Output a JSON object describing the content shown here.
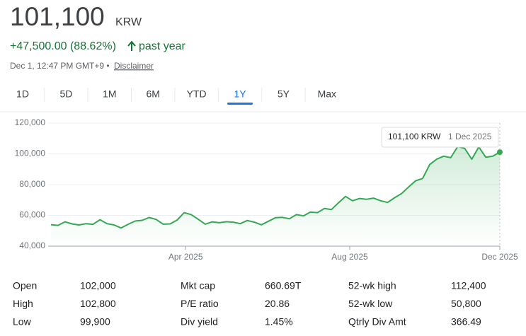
{
  "header": {
    "price": "101,100",
    "currency": "KRW",
    "change": "+47,500.00 (88.62%)",
    "period": "past year",
    "timestamp": "Dec 1, 12:47 PM GMT+9 •",
    "disclaimer": "Disclaimer"
  },
  "ranges": [
    "1D",
    "5D",
    "1M",
    "6M",
    "YTD",
    "1Y",
    "5Y",
    "Max"
  ],
  "active_range": 5,
  "chart_data": {
    "type": "line",
    "color": "#34a853",
    "grid": true,
    "x": [
      0,
      1,
      2,
      3,
      4,
      5,
      6,
      7,
      8,
      9,
      10,
      11,
      12,
      13,
      14,
      15,
      16,
      17,
      18,
      19,
      20,
      21,
      22,
      23,
      24,
      25,
      26,
      27,
      28,
      29,
      30,
      31,
      32,
      33,
      34,
      35,
      36,
      37,
      38,
      39,
      40,
      41,
      42,
      43,
      44,
      45,
      46,
      47,
      48,
      49,
      50,
      51,
      52,
      53,
      54,
      55,
      56,
      57,
      58,
      59,
      60,
      61,
      62,
      63,
      64
    ],
    "values": [
      54000,
      53500,
      55800,
      54500,
      53800,
      54600,
      54200,
      57200,
      54600,
      53800,
      51800,
      54200,
      56300,
      56800,
      58600,
      57400,
      54300,
      54500,
      57000,
      61800,
      60500,
      57500,
      54300,
      55800,
      55200,
      55900,
      55600,
      54600,
      56700,
      55600,
      53900,
      56200,
      58500,
      58700,
      57800,
      60500,
      59700,
      62200,
      61800,
      64500,
      63800,
      68200,
      72300,
      69500,
      71000,
      70500,
      71200,
      69500,
      68400,
      71500,
      74200,
      78500,
      82500,
      84000,
      93000,
      96500,
      98500,
      97500,
      104800,
      103500,
      96500,
      104500,
      97800,
      98500,
      101100
    ],
    "xlim": [
      -0.4,
      64
    ],
    "xticks": [
      {
        "value": 19.2,
        "label": "Apr 2025"
      },
      {
        "value": 42.6,
        "label": "Aug 2025"
      },
      {
        "value": 64,
        "label": "Dec 2025"
      }
    ],
    "ylim": [
      40000,
      120000
    ],
    "yticks": [
      {
        "value": 40000,
        "label": "40,000"
      },
      {
        "value": 60000,
        "label": "60,000"
      },
      {
        "value": 80000,
        "label": "80,000"
      },
      {
        "value": 100000,
        "label": "100,000"
      },
      {
        "value": 120000,
        "label": "120,000"
      }
    ],
    "tooltip": {
      "value": "101,100 KRW",
      "date": "1 Dec 2025"
    }
  },
  "stats": [
    [
      [
        "Open",
        "102,000"
      ],
      [
        "Mkt cap",
        "660.69T"
      ],
      [
        "52-wk high",
        "112,400"
      ]
    ],
    [
      [
        "High",
        "102,800"
      ],
      [
        "P/E ratio",
        "20.86"
      ],
      [
        "52-wk low",
        "50,800"
      ]
    ],
    [
      [
        "Low",
        "99,900"
      ],
      [
        "Div yield",
        "1.45%"
      ],
      [
        "Qtrly Div Amt",
        "366.49"
      ]
    ]
  ]
}
